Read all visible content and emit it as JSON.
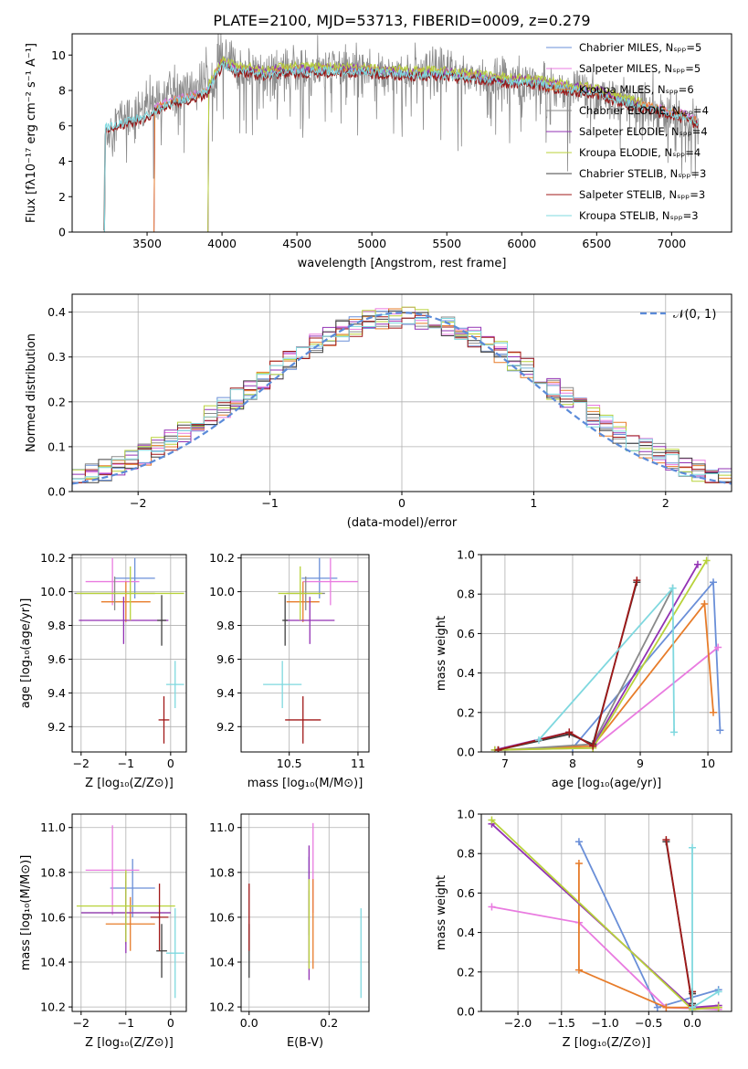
{
  "figure": {
    "title": "PLATE=2100, MJD=53713, FIBERID=0009, z=0.279"
  },
  "colors": {
    "Chabrier MILES": "#6a8fd8",
    "Salpeter MILES": "#e97be0",
    "Kroupa MILES": "#e77c2a",
    "Chabrier ELODIE": "#8a8a8a",
    "Salpeter ELODIE": "#9232b4",
    "Kroupa ELODIE": "#b8d23a",
    "Chabrier STELIB": "#404040",
    "Salpeter STELIB": "#a01818",
    "Kroupa STELIB": "#7fd8df",
    "normal": "#5b8bd9",
    "grid": "#b0b0b0"
  },
  "chart_data": [
    {
      "id": "spectrum",
      "type": "line",
      "xlabel": "wavelength [Angstrom, rest frame]",
      "ylabel": "Flux [fλ10⁻¹⁷ erg cm⁻² s⁻¹ A⁻¹]",
      "xlim": [
        3000,
        7400
      ],
      "ylim": [
        0,
        11.2
      ],
      "xticks": [
        3500,
        4000,
        4500,
        5000,
        5500,
        6000,
        6500,
        7000
      ],
      "yticks": [
        0,
        2,
        4,
        6,
        8,
        10
      ],
      "grid": false,
      "legend_position": "top-right",
      "legend": [
        "Chabrier MILES, Nₛₚₚ=5",
        "Salpeter MILES, Nₛₚₚ=5",
        "Kroupa MILES, Nₛₚₚ=6",
        "Chabrier ELODIE, Nₛₚₚ=4",
        "Salpeter ELODIE, Nₛₚₚ=4",
        "Kroupa ELODIE, Nₛₚₚ=4",
        "Chabrier STELIB, Nₛₚₚ=3",
        "Salpeter STELIB, Nₛₚₚ=3",
        "Kroupa STELIB, Nₛₚₚ=3"
      ],
      "data_curve": {
        "name": "data",
        "x": [
          3210,
          3300,
          3400,
          3500,
          3550,
          3600,
          3700,
          3800,
          3900,
          3950,
          4000,
          4050,
          4100,
          4200,
          4300,
          4400,
          4500,
          4600,
          4700,
          4800,
          4900,
          5000,
          5100,
          5200,
          5300,
          5400,
          5500,
          5600,
          5700,
          5800,
          5900,
          6000,
          6100,
          6200,
          6300,
          6400,
          6500,
          6600,
          6700,
          6800,
          6900,
          7000,
          7100,
          7180
        ],
        "y": [
          5.3,
          6.4,
          6.6,
          7.0,
          7.6,
          7.8,
          8.0,
          8.1,
          8.6,
          9.0,
          9.9,
          9.6,
          9.2,
          9.1,
          9.0,
          9.1,
          9.2,
          9.0,
          9.2,
          9.3,
          9.2,
          9.2,
          9.1,
          9.1,
          9.0,
          9.0,
          9.1,
          8.9,
          8.8,
          8.7,
          8.6,
          8.6,
          8.4,
          8.3,
          8.1,
          8.0,
          7.6,
          7.5,
          7.3,
          7.2,
          6.8,
          6.5,
          6.3,
          6.0
        ],
        "noise_amplitude": 1.4
      },
      "model_curves": [
        {
          "name": "Chabrier MILES",
          "start": 3540,
          "end": 7180,
          "offset": 0.0
        },
        {
          "name": "Salpeter MILES",
          "start": 3540,
          "end": 7180,
          "offset": 0.0
        },
        {
          "name": "Kroupa MILES",
          "start": 3540,
          "end": 7180,
          "offset": 0.0
        },
        {
          "name": "Chabrier ELODIE",
          "start": 3900,
          "end": 6800,
          "offset": 0.1
        },
        {
          "name": "Salpeter ELODIE",
          "start": 3900,
          "end": 6800,
          "offset": 0.05
        },
        {
          "name": "Kroupa ELODIE",
          "start": 3900,
          "end": 6800,
          "offset": 0.15
        },
        {
          "name": "Chabrier STELIB",
          "start": 3210,
          "end": 7180,
          "offset": -0.2
        },
        {
          "name": "Salpeter STELIB",
          "start": 3210,
          "end": 7180,
          "offset": -0.25
        },
        {
          "name": "Kroupa STELIB",
          "start": 3210,
          "end": 7180,
          "offset": -0.1
        }
      ],
      "model_baseline": {
        "x": [
          3210,
          3300,
          3400,
          3500,
          3600,
          3700,
          3800,
          3900,
          4000,
          4100,
          4200,
          4300,
          4400,
          4500,
          4700,
          4900,
          5100,
          5300,
          5500,
          5700,
          5900,
          6100,
          6300,
          6500,
          6700,
          6900,
          7100,
          7180
        ],
        "y": [
          6.0,
          6.2,
          6.4,
          6.7,
          7.2,
          7.5,
          7.7,
          8.0,
          9.6,
          9.2,
          9.2,
          9.0,
          9.2,
          9.2,
          9.2,
          9.2,
          9.1,
          9.0,
          9.0,
          8.8,
          8.6,
          8.5,
          8.2,
          8.0,
          7.4,
          7.0,
          6.6,
          6.2
        ]
      }
    },
    {
      "id": "residuals",
      "type": "histogram",
      "xlabel": "(data-model)/error",
      "ylabel": "Normed distribution",
      "xlim": [
        -2.5,
        2.5
      ],
      "ylim": [
        0,
        0.44
      ],
      "xticks": [
        -2,
        -1,
        0,
        1,
        2
      ],
      "yticks": [
        0.0,
        0.1,
        0.2,
        0.3,
        0.4
      ],
      "grid": true,
      "legend_position": "top-right",
      "legend": [
        "𝒩(0, 1)"
      ],
      "bin_width": 0.1,
      "normal": {
        "mu": 0,
        "sigma": 1
      }
    },
    {
      "id": "age-vs-Z",
      "type": "errorbar",
      "xlabel": "Z [log₁₀(Z/Z⊙)]",
      "ylabel": "age  [log₁₀(age/yr)]",
      "xlim": [
        -2.2,
        0.35
      ],
      "ylim": [
        9.05,
        10.22
      ],
      "xticks": [
        -2,
        -1,
        0
      ],
      "yticks": [
        9.2,
        9.4,
        9.6,
        9.8,
        10.0,
        10.2
      ],
      "grid": true,
      "points": [
        {
          "name": "Chabrier MILES",
          "x": -0.8,
          "xerr": 0.45,
          "y": 10.08,
          "yerr": 0.12
        },
        {
          "name": "Salpeter MILES",
          "x": -1.3,
          "xerr": 0.6,
          "y": 10.06,
          "yerr": 0.14
        },
        {
          "name": "Kroupa MILES",
          "x": -1.0,
          "xerr": 0.55,
          "y": 9.94,
          "yerr": 0.12
        },
        {
          "name": "Chabrier ELODIE",
          "x": -1.25,
          "xerr": 0.9,
          "y": 9.99,
          "yerr": 0.1
        },
        {
          "name": "Salpeter ELODIE",
          "x": -1.05,
          "xerr": 1.0,
          "y": 9.83,
          "yerr": 0.14
        },
        {
          "name": "Kroupa ELODIE",
          "x": -0.9,
          "xerr": 1.2,
          "y": 9.99,
          "yerr": 0.16
        },
        {
          "name": "Chabrier STELIB",
          "x": -0.2,
          "xerr": 0.1,
          "y": 9.83,
          "yerr": 0.15
        },
        {
          "name": "Salpeter STELIB",
          "x": -0.15,
          "xerr": 0.12,
          "y": 9.24,
          "yerr": 0.14
        },
        {
          "name": "Kroupa STELIB",
          "x": 0.1,
          "xerr": 0.2,
          "y": 9.45,
          "yerr": 0.14
        }
      ]
    },
    {
      "id": "age-vs-mass",
      "type": "errorbar",
      "xlabel": "mass [log₁₀(M/M⊙)]",
      "ylabel": "",
      "xlim": [
        10.15,
        11.08
      ],
      "ylim": [
        9.05,
        10.22
      ],
      "xticks": [
        10.5,
        11.0
      ],
      "yticks": [
        9.2,
        9.4,
        9.6,
        9.8,
        10.0,
        10.2
      ],
      "grid": true,
      "points": [
        {
          "name": "Chabrier MILES",
          "x": 10.72,
          "xerr": 0.13,
          "y": 10.08,
          "yerr": 0.12
        },
        {
          "name": "Salpeter MILES",
          "x": 10.8,
          "xerr": 0.2,
          "y": 10.06,
          "yerr": 0.14
        },
        {
          "name": "Kroupa MILES",
          "x": 10.6,
          "xerr": 0.12,
          "y": 9.94,
          "yerr": 0.12
        },
        {
          "name": "Chabrier ELODIE",
          "x": 10.62,
          "xerr": 0.14,
          "y": 9.99,
          "yerr": 0.1
        },
        {
          "name": "Salpeter ELODIE",
          "x": 10.65,
          "xerr": 0.18,
          "y": 9.83,
          "yerr": 0.14
        },
        {
          "name": "Kroupa ELODIE",
          "x": 10.58,
          "xerr": 0.16,
          "y": 9.99,
          "yerr": 0.16
        },
        {
          "name": "Chabrier STELIB",
          "x": 10.47,
          "xerr": 0.02,
          "y": 9.83,
          "yerr": 0.15
        },
        {
          "name": "Salpeter STELIB",
          "x": 10.6,
          "xerr": 0.13,
          "y": 9.24,
          "yerr": 0.14
        },
        {
          "name": "Kroupa STELIB",
          "x": 10.45,
          "xerr": 0.14,
          "y": 9.45,
          "yerr": 0.14
        }
      ]
    },
    {
      "id": "massweight-vs-age",
      "type": "line",
      "xlabel": "age  [log₁₀(age/yr)]",
      "ylabel": "mass weight",
      "xlim": [
        6.65,
        10.35
      ],
      "ylim": [
        0,
        1.0
      ],
      "xticks": [
        7,
        8,
        9,
        10
      ],
      "yticks": [
        0.0,
        0.2,
        0.4,
        0.6,
        0.8,
        1.0
      ],
      "grid": true,
      "series": [
        {
          "name": "Chabrier MILES",
          "x": [
            6.85,
            8.0,
            10.08,
            10.18
          ],
          "y": [
            0.01,
            0.02,
            0.86,
            0.11
          ]
        },
        {
          "name": "Salpeter MILES",
          "x": [
            6.9,
            8.3,
            10.15
          ],
          "y": [
            0.01,
            0.02,
            0.53
          ]
        },
        {
          "name": "Kroupa MILES",
          "x": [
            6.9,
            8.3,
            9.95,
            10.08
          ],
          "y": [
            0.01,
            0.03,
            0.75,
            0.2
          ]
        },
        {
          "name": "Chabrier ELODIE",
          "x": [
            7.0,
            8.3,
            9.48
          ],
          "y": [
            0.01,
            0.04,
            0.83
          ]
        },
        {
          "name": "Salpeter ELODIE",
          "x": [
            6.85,
            7.95,
            8.3,
            9.85
          ],
          "y": [
            0.01,
            0.1,
            0.03,
            0.95
          ]
        },
        {
          "name": "Kroupa ELODIE",
          "x": [
            6.85,
            8.3,
            9.98
          ],
          "y": [
            0.01,
            0.02,
            0.97
          ]
        },
        {
          "name": "Chabrier STELIB",
          "x": [
            6.9,
            7.95,
            8.3,
            8.95
          ],
          "y": [
            0.01,
            0.09,
            0.04,
            0.86
          ]
        },
        {
          "name": "Salpeter STELIB",
          "x": [
            6.9,
            7.95,
            8.3,
            8.95
          ],
          "y": [
            0.01,
            0.1,
            0.03,
            0.87
          ]
        },
        {
          "name": "Kroupa STELIB",
          "x": [
            7.5,
            9.48,
            9.5
          ],
          "y": [
            0.06,
            0.83,
            0.1
          ]
        }
      ]
    },
    {
      "id": "mass-vs-Z",
      "type": "errorbar",
      "xlabel": "Z [log₁₀(Z/Z⊙)]",
      "ylabel": "mass [log₁₀(M/M⊙)]",
      "xlim": [
        -2.2,
        0.35
      ],
      "ylim": [
        10.18,
        11.06
      ],
      "xticks": [
        -2,
        -1,
        0
      ],
      "yticks": [
        10.2,
        10.4,
        10.6,
        10.8,
        11.0
      ],
      "grid": true,
      "points": [
        {
          "name": "Chabrier MILES",
          "x": -0.85,
          "xerr": 0.5,
          "y": 10.73,
          "yerr": 0.13
        },
        {
          "name": "Salpeter MILES",
          "x": -1.3,
          "xerr": 0.6,
          "y": 10.81,
          "yerr": 0.2
        },
        {
          "name": "Kroupa MILES",
          "x": -0.9,
          "xerr": 0.55,
          "y": 10.57,
          "yerr": 0.12
        },
        {
          "name": "Chabrier ELODIE",
          "x": -1.0,
          "xerr": 1.0,
          "y": 10.62,
          "yerr": 0.14
        },
        {
          "name": "Salpeter ELODIE",
          "x": -1.0,
          "xerr": 1.0,
          "y": 10.62,
          "yerr": 0.18
        },
        {
          "name": "Kroupa ELODIE",
          "x": -1.0,
          "xerr": 1.1,
          "y": 10.65,
          "yerr": 0.16
        },
        {
          "name": "Chabrier STELIB",
          "x": -0.2,
          "xerr": 0.12,
          "y": 10.45,
          "yerr": 0.12
        },
        {
          "name": "Salpeter STELIB",
          "x": -0.25,
          "xerr": 0.2,
          "y": 10.6,
          "yerr": 0.15
        },
        {
          "name": "Kroupa STELIB",
          "x": 0.1,
          "xerr": 0.2,
          "y": 10.44,
          "yerr": 0.2
        }
      ]
    },
    {
      "id": "mass-vs-EBV",
      "type": "errorbar",
      "xlabel": "E(B-V)",
      "ylabel": "",
      "xlim": [
        -0.02,
        0.3
      ],
      "ylim": [
        10.18,
        11.06
      ],
      "xticks": [
        0.0,
        0.2
      ],
      "yticks": [
        10.2,
        10.4,
        10.6,
        10.8,
        11.0
      ],
      "grid": true,
      "points": [
        {
          "name": "Chabrier MILES",
          "x": 0.15,
          "xerr": 0.0,
          "y": 10.82,
          "yerr": 0.05
        },
        {
          "name": "Salpeter MILES",
          "x": 0.16,
          "xerr": 0.0,
          "y": 10.82,
          "yerr": 0.2
        },
        {
          "name": "Kroupa MILES",
          "x": 0.16,
          "xerr": 0.0,
          "y": 10.57,
          "yerr": 0.2
        },
        {
          "name": "Chabrier ELODIE",
          "x": 0.15,
          "xerr": 0.0,
          "y": 10.62,
          "yerr": 0.1
        },
        {
          "name": "Salpeter ELODIE",
          "x": 0.15,
          "xerr": 0.0,
          "y": 10.62,
          "yerr": 0.3
        },
        {
          "name": "Kroupa ELODIE",
          "x": 0.15,
          "xerr": 0.0,
          "y": 10.57,
          "yerr": 0.2
        },
        {
          "name": "Chabrier STELIB",
          "x": 0.0,
          "xerr": 0.0,
          "y": 10.45,
          "yerr": 0.12
        },
        {
          "name": "Salpeter STELIB",
          "x": 0.0,
          "xerr": 0.0,
          "y": 10.6,
          "yerr": 0.15
        },
        {
          "name": "Kroupa STELIB",
          "x": 0.28,
          "xerr": 0.0,
          "y": 10.44,
          "yerr": 0.2
        }
      ]
    },
    {
      "id": "massweight-vs-Z",
      "type": "line",
      "xlabel": "Z [log₁₀(Z/Z⊙)]",
      "ylabel": "mass weight",
      "xlim": [
        -2.42,
        0.45
      ],
      "ylim": [
        0,
        1.0
      ],
      "xticks": [
        -2.0,
        -1.5,
        -1.0,
        -0.5,
        0.0
      ],
      "yticks": [
        0.0,
        0.2,
        0.4,
        0.6,
        0.8,
        1.0
      ],
      "grid": true,
      "series": [
        {
          "name": "Chabrier MILES",
          "x": [
            -1.3,
            -0.4,
            0.3
          ],
          "y": [
            0.86,
            0.02,
            0.11
          ]
        },
        {
          "name": "Salpeter MILES",
          "x": [
            -2.3,
            -1.3,
            -0.3,
            0.3
          ],
          "y": [
            0.53,
            0.45,
            0.02,
            0.01
          ]
        },
        {
          "name": "Kroupa MILES",
          "x": [
            -1.3,
            -1.3,
            -0.3,
            0.3
          ],
          "y": [
            0.75,
            0.21,
            0.02,
            0.02
          ]
        },
        {
          "name": "Chabrier ELODIE",
          "x": [
            0.0,
            0.0
          ],
          "y": [
            0.04,
            0.09
          ]
        },
        {
          "name": "Salpeter ELODIE",
          "x": [
            -2.3,
            0.0,
            0.3
          ],
          "y": [
            0.95,
            0.02,
            0.03
          ]
        },
        {
          "name": "Kroupa ELODIE",
          "x": [
            -2.3,
            0.0,
            0.3
          ],
          "y": [
            0.97,
            0.01,
            0.02
          ]
        },
        {
          "name": "Chabrier STELIB",
          "x": [
            -0.3,
            0.0,
            0.0
          ],
          "y": [
            0.86,
            0.04,
            0.09
          ]
        },
        {
          "name": "Salpeter STELIB",
          "x": [
            -0.3,
            0.0,
            0.0
          ],
          "y": [
            0.87,
            0.03,
            0.1
          ]
        },
        {
          "name": "Kroupa STELIB",
          "x": [
            0.0,
            0.0,
            0.3
          ],
          "y": [
            0.83,
            0.02,
            0.1
          ]
        }
      ]
    }
  ]
}
